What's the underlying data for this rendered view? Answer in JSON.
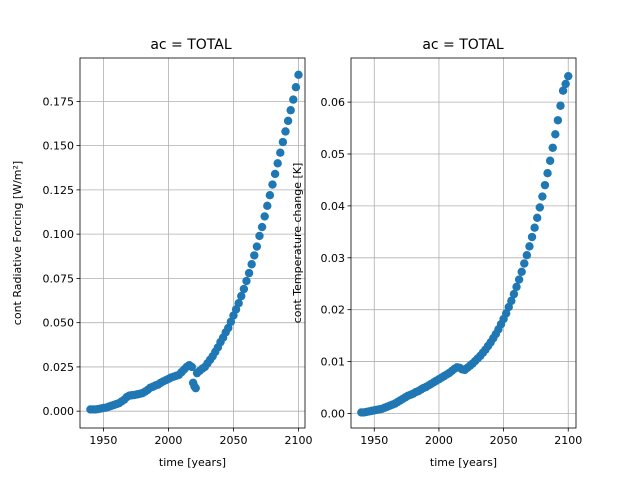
{
  "chart_data": [
    {
      "type": "scatter",
      "title": "ac = TOTAL",
      "xlabel": "time [years]",
      "ylabel": "cont Radiative Forcing [W/m²]",
      "xlim": [
        1932,
        2105
      ],
      "ylim": [
        -0.0095,
        0.1995
      ],
      "xticks": [
        1950,
        2000,
        2050,
        2100
      ],
      "xtick_labels": [
        "1950",
        "2000",
        "2050",
        "2100"
      ],
      "yticks": [
        0.0,
        0.025,
        0.05,
        0.075,
        0.1,
        0.125,
        0.15,
        0.175
      ],
      "ytick_labels": [
        "0.000",
        "0.025",
        "0.050",
        "0.075",
        "0.100",
        "0.125",
        "0.150",
        "0.175"
      ],
      "grid": true,
      "marker_color": "#1f77b4",
      "series": [
        {
          "x": [
            1940,
            1942,
            1944,
            1946,
            1948,
            1950,
            1952,
            1954,
            1956,
            1958,
            1960,
            1962,
            1964,
            1966,
            1968,
            1970,
            1972,
            1974,
            1976,
            1978,
            1980,
            1982,
            1984,
            1986,
            1988,
            1990,
            1992,
            1994,
            1996,
            1998,
            2000,
            2002,
            2004,
            2006,
            2008,
            2010,
            2012,
            2014,
            2016,
            2018,
            2019,
            2020,
            2021,
            2022,
            2024,
            2026,
            2028,
            2030,
            2032,
            2034,
            2036,
            2038,
            2040,
            2042,
            2044,
            2046,
            2048,
            2050,
            2052,
            2054,
            2056,
            2058,
            2060,
            2062,
            2064,
            2066,
            2068,
            2070,
            2072,
            2074,
            2076,
            2078,
            2080,
            2082,
            2084,
            2086,
            2088,
            2090,
            2092,
            2094,
            2096,
            2098,
            2100
          ],
          "y": [
            0.001,
            0.001,
            0.001,
            0.0012,
            0.0015,
            0.0018,
            0.002,
            0.0025,
            0.003,
            0.0035,
            0.004,
            0.0045,
            0.0055,
            0.0065,
            0.008,
            0.0088,
            0.009,
            0.0092,
            0.0095,
            0.0098,
            0.0102,
            0.011,
            0.012,
            0.0132,
            0.0138,
            0.0145,
            0.015,
            0.016,
            0.0168,
            0.0175,
            0.0182,
            0.019,
            0.0195,
            0.02,
            0.0205,
            0.022,
            0.0235,
            0.025,
            0.026,
            0.025,
            0.016,
            0.014,
            0.013,
            0.0215,
            0.0228,
            0.024,
            0.025,
            0.027,
            0.029,
            0.031,
            0.0335,
            0.036,
            0.039,
            0.0415,
            0.0445,
            0.047,
            0.0505,
            0.054,
            0.0575,
            0.061,
            0.065,
            0.069,
            0.0735,
            0.078,
            0.083,
            0.088,
            0.093,
            0.099,
            0.104,
            0.11,
            0.116,
            0.122,
            0.128,
            0.134,
            0.14,
            0.146,
            0.152,
            0.158,
            0.164,
            0.17,
            0.176,
            0.183,
            0.19
          ]
        }
      ]
    },
    {
      "type": "scatter",
      "title": "ac = TOTAL",
      "xlabel": "time [years]",
      "ylabel": "cont Temperature change [K]",
      "xlim": [
        1932,
        2106
      ],
      "ylim": [
        -0.0028,
        0.0685
      ],
      "xticks": [
        1950,
        2000,
        2050,
        2100
      ],
      "xtick_labels": [
        "1950",
        "2000",
        "2050",
        "2100"
      ],
      "yticks": [
        0.0,
        0.01,
        0.02,
        0.03,
        0.04,
        0.05,
        0.06
      ],
      "ytick_labels": [
        "0.00",
        "0.01",
        "0.02",
        "0.03",
        "0.04",
        "0.05",
        "0.06"
      ],
      "grid": true,
      "marker_color": "#1f77b4",
      "series": [
        {
          "x": [
            1940,
            1942,
            1944,
            1946,
            1948,
            1950,
            1952,
            1954,
            1956,
            1958,
            1960,
            1962,
            1964,
            1966,
            1968,
            1970,
            1972,
            1974,
            1976,
            1978,
            1980,
            1982,
            1984,
            1986,
            1988,
            1990,
            1992,
            1994,
            1996,
            1998,
            2000,
            2002,
            2004,
            2006,
            2008,
            2010,
            2012,
            2014,
            2016,
            2018,
            2020,
            2022,
            2024,
            2026,
            2028,
            2030,
            2032,
            2034,
            2036,
            2038,
            2040,
            2042,
            2044,
            2046,
            2048,
            2050,
            2052,
            2054,
            2056,
            2058,
            2060,
            2062,
            2064,
            2066,
            2068,
            2070,
            2072,
            2074,
            2076,
            2078,
            2080,
            2082,
            2084,
            2086,
            2088,
            2090,
            2092,
            2094,
            2096,
            2098,
            2100
          ],
          "y": [
            0.0002,
            0.0002,
            0.0003,
            0.0004,
            0.0005,
            0.0006,
            0.0007,
            0.0008,
            0.0009,
            0.0011,
            0.0013,
            0.0015,
            0.0017,
            0.0019,
            0.0022,
            0.0025,
            0.0028,
            0.0031,
            0.0034,
            0.0036,
            0.0038,
            0.0041,
            0.0043,
            0.0046,
            0.0049,
            0.0051,
            0.0054,
            0.0057,
            0.006,
            0.0063,
            0.0066,
            0.0069,
            0.0072,
            0.0075,
            0.0078,
            0.0082,
            0.0086,
            0.0089,
            0.0088,
            0.0085,
            0.0084,
            0.0088,
            0.0092,
            0.0096,
            0.0101,
            0.0106,
            0.0111,
            0.0117,
            0.0123,
            0.013,
            0.0137,
            0.0145,
            0.0153,
            0.0162,
            0.0172,
            0.0182,
            0.0193,
            0.0205,
            0.0217,
            0.023,
            0.0244,
            0.0258,
            0.0273,
            0.0289,
            0.0305,
            0.0322,
            0.034,
            0.0358,
            0.0377,
            0.0397,
            0.0418,
            0.044,
            0.0463,
            0.0487,
            0.0512,
            0.0538,
            0.0565,
            0.0593,
            0.0622,
            0.0635,
            0.065
          ]
        }
      ]
    }
  ]
}
